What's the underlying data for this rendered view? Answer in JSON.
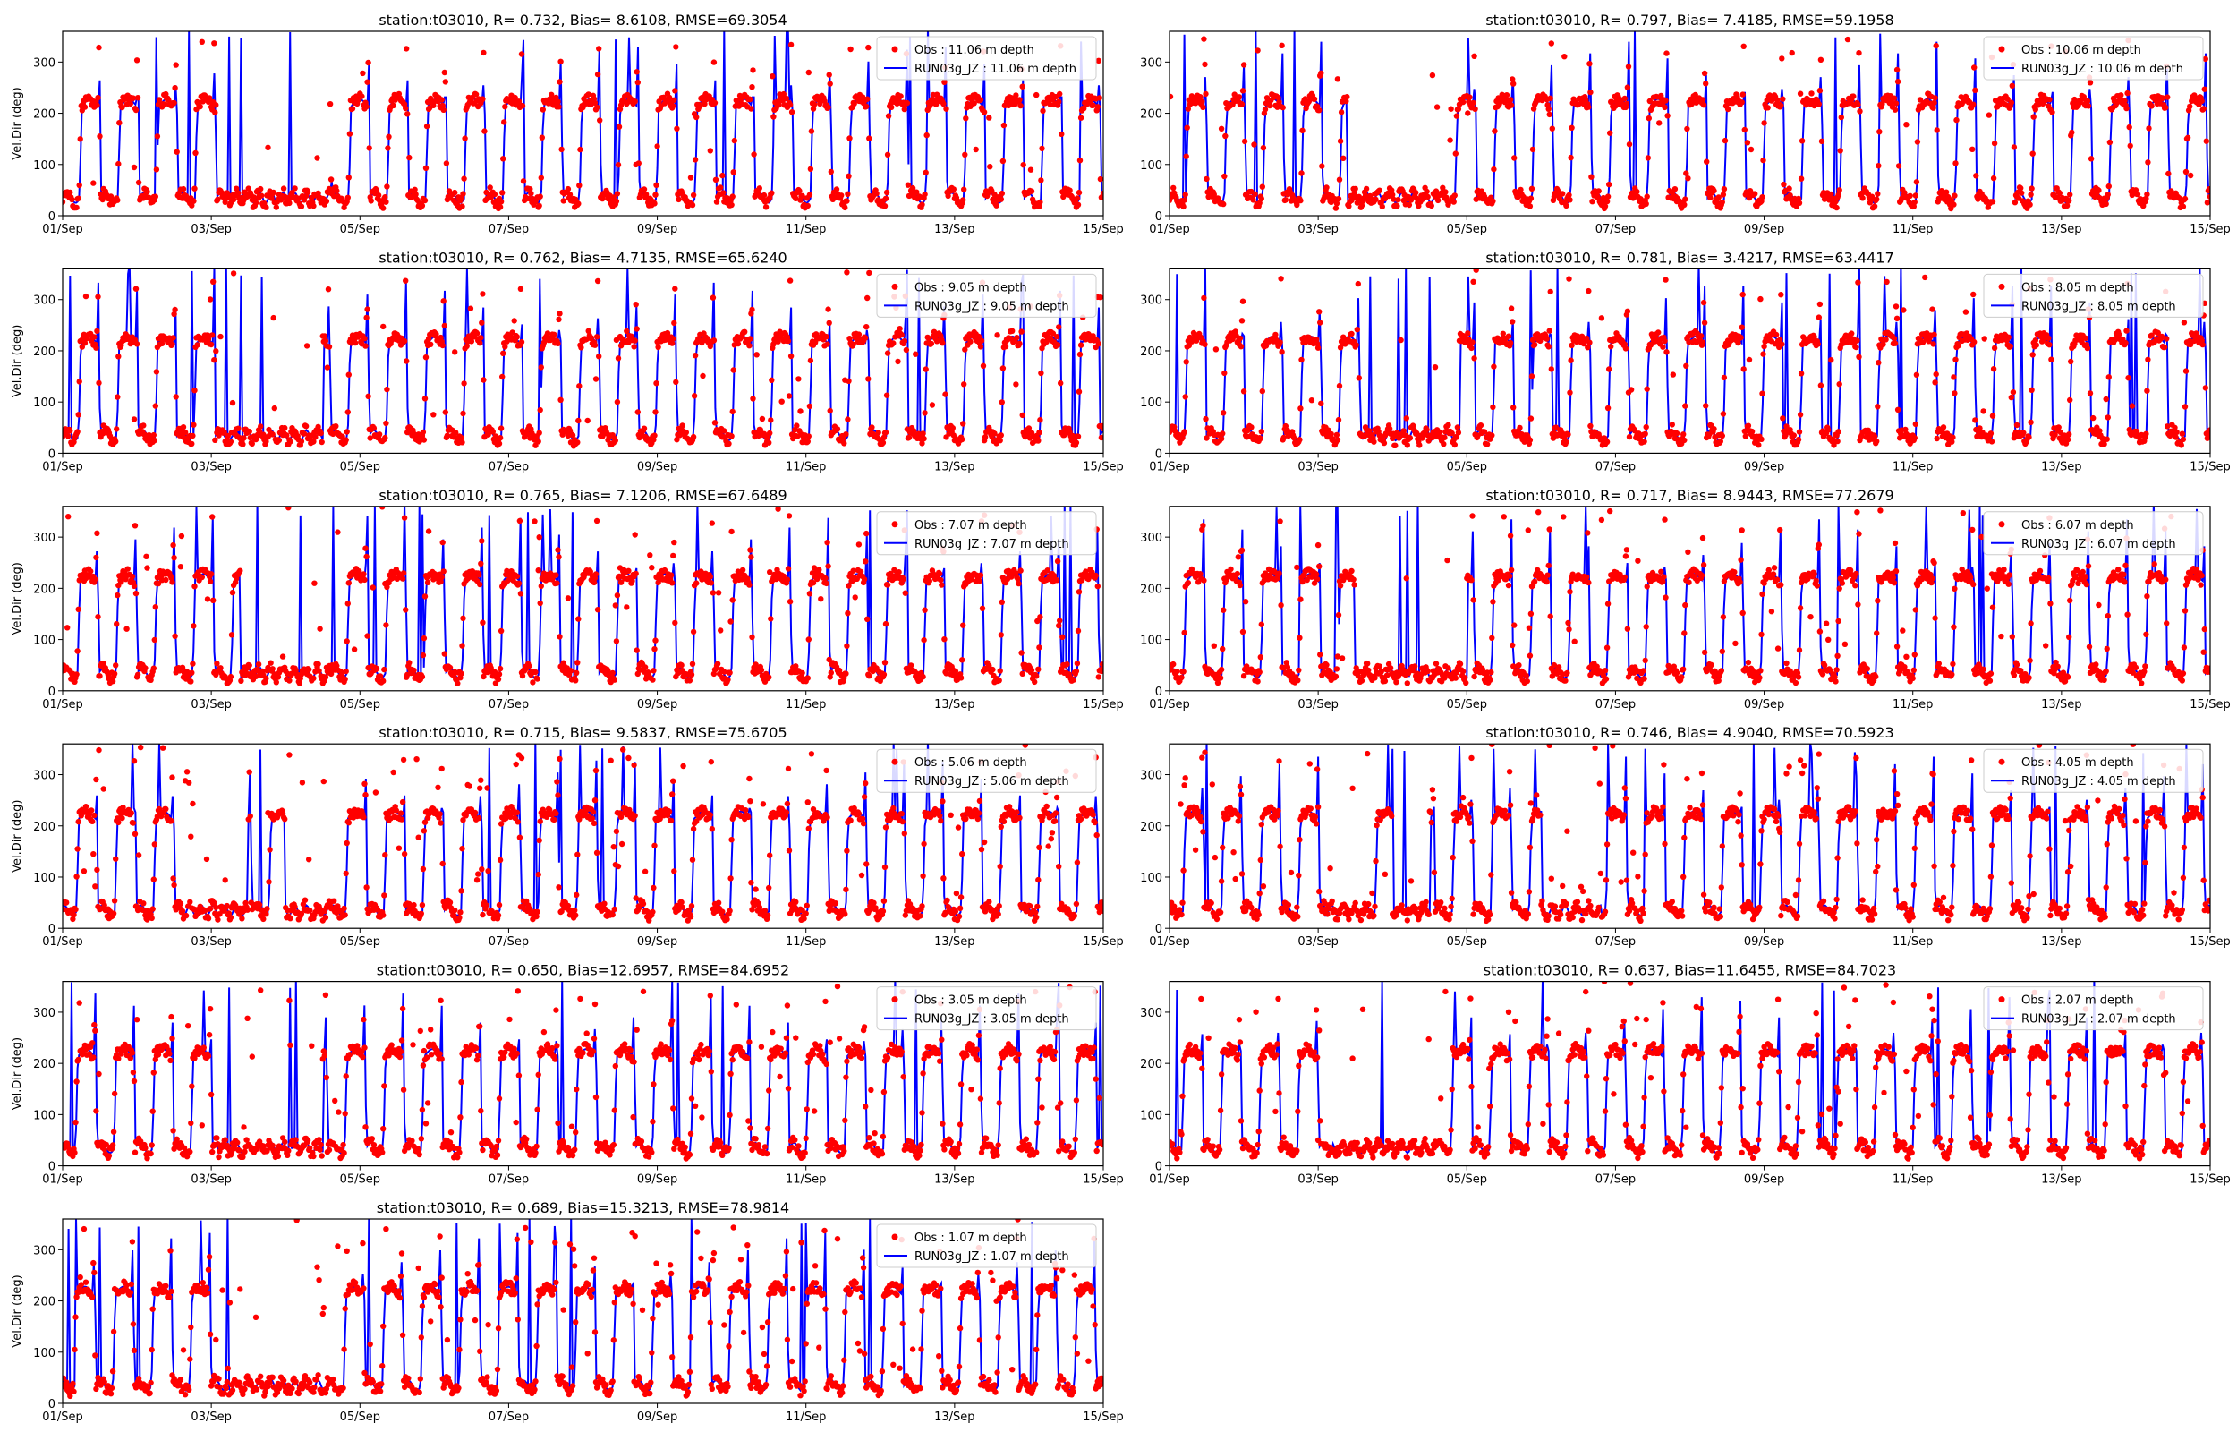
{
  "figure": {
    "obs_color": "#ff0000",
    "model_color": "#0000ff"
  },
  "chart_data": [
    {
      "type": "line",
      "title": "station:t03010, R= 0.732, Bias= 8.6108, RMSE=69.3054",
      "ylabel": "Vel.Dir (deg)",
      "ylim": [
        0,
        360
      ],
      "yticks": [
        0,
        100,
        200,
        300
      ],
      "xticks": [
        "01/Sep",
        "03/Sep",
        "05/Sep",
        "07/Sep",
        "09/Sep",
        "11/Sep",
        "13/Sep",
        "15/Sep"
      ],
      "xlim_days": [
        1,
        15
      ],
      "calm_periods": [
        [
          3.2,
          4.6
        ]
      ],
      "series": [
        {
          "name": "Obs : 11.06 m depth",
          "style": "markers"
        },
        {
          "name": "RUN03g_JZ : 11.06 m depth",
          "style": "line"
        }
      ]
    },
    {
      "type": "line",
      "title": "station:t03010, R= 0.797, Bias= 7.4185, RMSE=59.1958",
      "ylabel": "",
      "ylim": [
        0,
        360
      ],
      "yticks": [
        0,
        100,
        200,
        300
      ],
      "xticks": [
        "01/Sep",
        "03/Sep",
        "05/Sep",
        "07/Sep",
        "09/Sep",
        "11/Sep",
        "13/Sep",
        "15/Sep"
      ],
      "xlim_days": [
        1,
        15
      ],
      "calm_periods": [
        [
          3.4,
          4.6
        ]
      ],
      "series": [
        {
          "name": "Obs : 10.06 m depth",
          "style": "markers"
        },
        {
          "name": "RUN03g_JZ : 10.06 m depth",
          "style": "line"
        }
      ]
    },
    {
      "type": "line",
      "title": "station:t03010, R= 0.762, Bias= 4.7135, RMSE=65.6240",
      "ylabel": "Vel.Dir (deg)",
      "ylim": [
        0,
        360
      ],
      "yticks": [
        0,
        100,
        200,
        300
      ],
      "xticks": [
        "01/Sep",
        "03/Sep",
        "05/Sep",
        "07/Sep",
        "09/Sep",
        "11/Sep",
        "13/Sep",
        "15/Sep"
      ],
      "xlim_days": [
        1,
        15
      ],
      "calm_periods": [
        [
          3.3,
          4.5
        ]
      ],
      "series": [
        {
          "name": "Obs : 9.05 m depth",
          "style": "markers"
        },
        {
          "name": "RUN03g_JZ : 9.05 m depth",
          "style": "line"
        }
      ]
    },
    {
      "type": "line",
      "title": "station:t03010, R= 0.781, Bias= 3.4217, RMSE=63.4417",
      "ylabel": "",
      "ylim": [
        0,
        360
      ],
      "yticks": [
        0,
        100,
        200,
        300
      ],
      "xticks": [
        "01/Sep",
        "03/Sep",
        "05/Sep",
        "07/Sep",
        "09/Sep",
        "11/Sep",
        "13/Sep",
        "15/Sep"
      ],
      "xlim_days": [
        1,
        15
      ],
      "calm_periods": [
        [
          3.6,
          4.9
        ]
      ],
      "series": [
        {
          "name": "Obs : 8.05 m depth",
          "style": "markers"
        },
        {
          "name": "RUN03g_JZ : 8.05 m depth",
          "style": "line"
        }
      ]
    },
    {
      "type": "line",
      "title": "station:t03010, R= 0.765, Bias= 7.1206, RMSE=67.6489",
      "ylabel": "Vel.Dir (deg)",
      "ylim": [
        0,
        360
      ],
      "yticks": [
        0,
        100,
        200,
        300
      ],
      "xticks": [
        "01/Sep",
        "03/Sep",
        "05/Sep",
        "07/Sep",
        "09/Sep",
        "11/Sep",
        "13/Sep",
        "15/Sep"
      ],
      "xlim_days": [
        1,
        15
      ],
      "calm_periods": [
        [
          3.4,
          4.6
        ]
      ],
      "series": [
        {
          "name": "Obs : 7.07 m depth",
          "style": "markers"
        },
        {
          "name": "RUN03g_JZ : 7.07 m depth",
          "style": "line"
        }
      ]
    },
    {
      "type": "line",
      "title": "station:t03010, R= 0.717, Bias= 8.9443, RMSE=77.2679",
      "ylabel": "",
      "ylim": [
        0,
        360
      ],
      "yticks": [
        0,
        100,
        200,
        300
      ],
      "xticks": [
        "01/Sep",
        "03/Sep",
        "05/Sep",
        "07/Sep",
        "09/Sep",
        "11/Sep",
        "13/Sep",
        "15/Sep"
      ],
      "xlim_days": [
        1,
        15
      ],
      "calm_periods": [
        [
          3.5,
          5.0
        ]
      ],
      "series": [
        {
          "name": "Obs : 6.07 m depth",
          "style": "markers"
        },
        {
          "name": "RUN03g_JZ : 6.07 m depth",
          "style": "line"
        }
      ]
    },
    {
      "type": "line",
      "title": "station:t03010, R= 0.715, Bias= 9.5837, RMSE=75.6705",
      "ylabel": "Vel.Dir (deg)",
      "ylim": [
        0,
        360
      ],
      "yticks": [
        0,
        100,
        200,
        300
      ],
      "xticks": [
        "01/Sep",
        "03/Sep",
        "05/Sep",
        "07/Sep",
        "09/Sep",
        "11/Sep",
        "13/Sep",
        "15/Sep"
      ],
      "xlim_days": [
        1,
        15
      ],
      "calm_periods": [
        [
          2.6,
          3.5
        ],
        [
          4.0,
          4.6
        ]
      ],
      "series": [
        {
          "name": "Obs : 5.06 m depth",
          "style": "markers"
        },
        {
          "name": "RUN03g_JZ : 5.06 m depth",
          "style": "line"
        }
      ]
    },
    {
      "type": "line",
      "title": "station:t03010, R= 0.746, Bias= 4.9040, RMSE=70.5923",
      "ylabel": "",
      "ylim": [
        0,
        360
      ],
      "yticks": [
        0,
        100,
        200,
        300
      ],
      "xticks": [
        "01/Sep",
        "03/Sep",
        "05/Sep",
        "07/Sep",
        "09/Sep",
        "11/Sep",
        "13/Sep",
        "15/Sep"
      ],
      "xlim_days": [
        1,
        15
      ],
      "calm_periods": [
        [
          3.1,
          3.7
        ],
        [
          4.0,
          4.5
        ],
        [
          6.0,
          6.8
        ]
      ],
      "series": [
        {
          "name": "Obs : 4.05 m depth",
          "style": "markers"
        },
        {
          "name": "RUN03g_JZ : 4.05 m depth",
          "style": "line"
        }
      ]
    },
    {
      "type": "line",
      "title": "station:t03010, R= 0.650, Bias=12.6957, RMSE=84.6952",
      "ylabel": "Vel.Dir (deg)",
      "ylim": [
        0,
        360
      ],
      "yticks": [
        0,
        100,
        200,
        300
      ],
      "xticks": [
        "01/Sep",
        "03/Sep",
        "05/Sep",
        "07/Sep",
        "09/Sep",
        "11/Sep",
        "13/Sep",
        "15/Sep"
      ],
      "xlim_days": [
        1,
        15
      ],
      "calm_periods": [
        [
          3.1,
          4.5
        ]
      ],
      "series": [
        {
          "name": "Obs : 3.05 m depth",
          "style": "markers"
        },
        {
          "name": "RUN03g_JZ : 3.05 m depth",
          "style": "line"
        }
      ]
    },
    {
      "type": "line",
      "title": "station:t03010, R= 0.637, Bias=11.6455, RMSE=84.7023",
      "ylabel": "",
      "ylim": [
        0,
        360
      ],
      "yticks": [
        0,
        100,
        200,
        300
      ],
      "xticks": [
        "01/Sep",
        "03/Sep",
        "05/Sep",
        "07/Sep",
        "09/Sep",
        "11/Sep",
        "13/Sep",
        "15/Sep"
      ],
      "xlim_days": [
        1,
        15
      ],
      "calm_periods": [
        [
          3.2,
          4.6
        ]
      ],
      "series": [
        {
          "name": "Obs : 2.07 m depth",
          "style": "markers"
        },
        {
          "name": "RUN03g_JZ : 2.07 m depth",
          "style": "line"
        }
      ]
    },
    {
      "type": "line",
      "title": "station:t03010, R= 0.689, Bias=15.3213, RMSE=78.9814",
      "ylabel": "Vel.Dir (deg)",
      "ylim": [
        0,
        360
      ],
      "yticks": [
        0,
        100,
        200,
        300
      ],
      "xticks": [
        "01/Sep",
        "03/Sep",
        "05/Sep",
        "07/Sep",
        "09/Sep",
        "11/Sep",
        "13/Sep",
        "15/Sep"
      ],
      "xlim_days": [
        1,
        15
      ],
      "calm_periods": [
        [
          3.2,
          4.6
        ]
      ],
      "series": [
        {
          "name": "Obs : 1.07 m depth",
          "style": "markers"
        },
        {
          "name": "RUN03g_JZ : 1.07 m depth",
          "style": "line"
        }
      ]
    }
  ]
}
